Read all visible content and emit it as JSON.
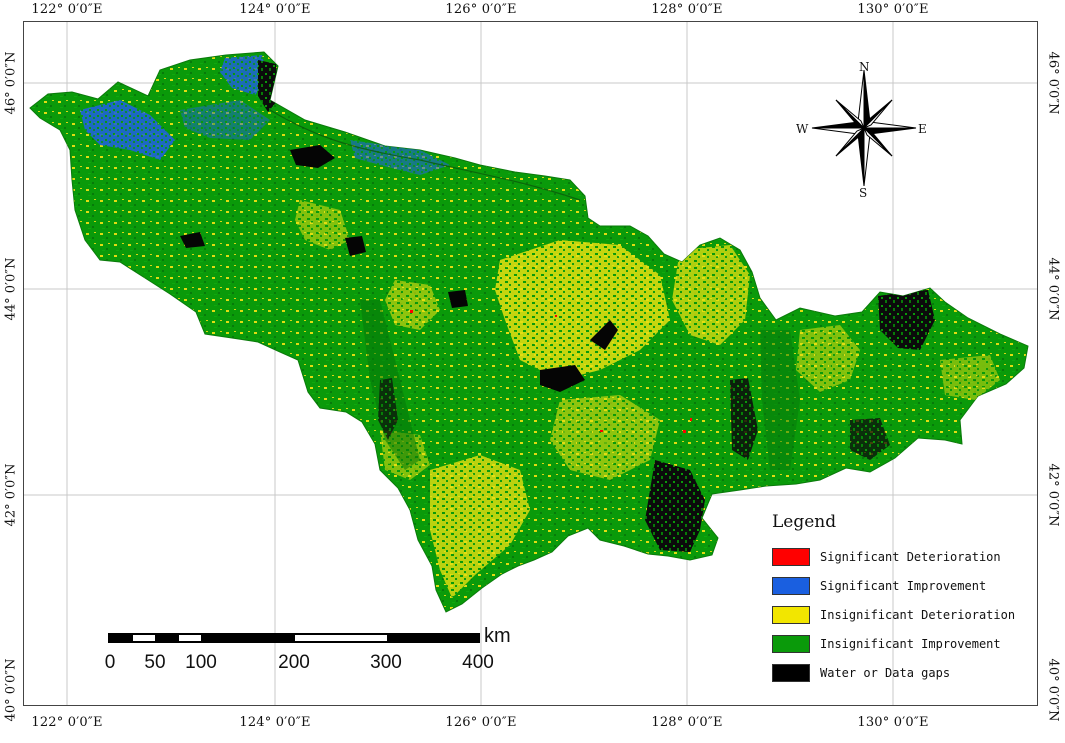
{
  "map": {
    "graticule": {
      "longitude_labels": [
        "122° 0′0″E",
        "124° 0′0″E",
        "126° 0′0″E",
        "128° 0′0″E",
        "130° 0′0″E"
      ],
      "latitude_labels": [
        "46° 0′0″N",
        "44° 0′0″N",
        "42° 0′0″N",
        "40° 0′0″N"
      ]
    },
    "legend": {
      "title": "Legend",
      "items": [
        {
          "label": "Significant Deterioration",
          "color": "#ff0000"
        },
        {
          "label": "Significant Improvement",
          "color": "#1a5fe0"
        },
        {
          "label": "Insignificant Deterioration",
          "color": "#f2e600"
        },
        {
          "label": "Insignificant Improvement",
          "color": "#0a9a0a"
        },
        {
          "label": "Water or Data gaps",
          "color": "#000000"
        }
      ]
    },
    "scale_bar": {
      "unit": "km",
      "labels": [
        "0",
        "50",
        "100",
        "200",
        "300",
        "400"
      ]
    },
    "north_arrow": {
      "n": "N",
      "s": "S",
      "e": "E",
      "w": "W"
    },
    "colors": {
      "land": "#0a9a0a",
      "dark_green": "#067a0a",
      "yellow": "#e6e010",
      "blue": "#1a5fe0",
      "water": "#000000",
      "grid": "#c8c8c8"
    }
  }
}
